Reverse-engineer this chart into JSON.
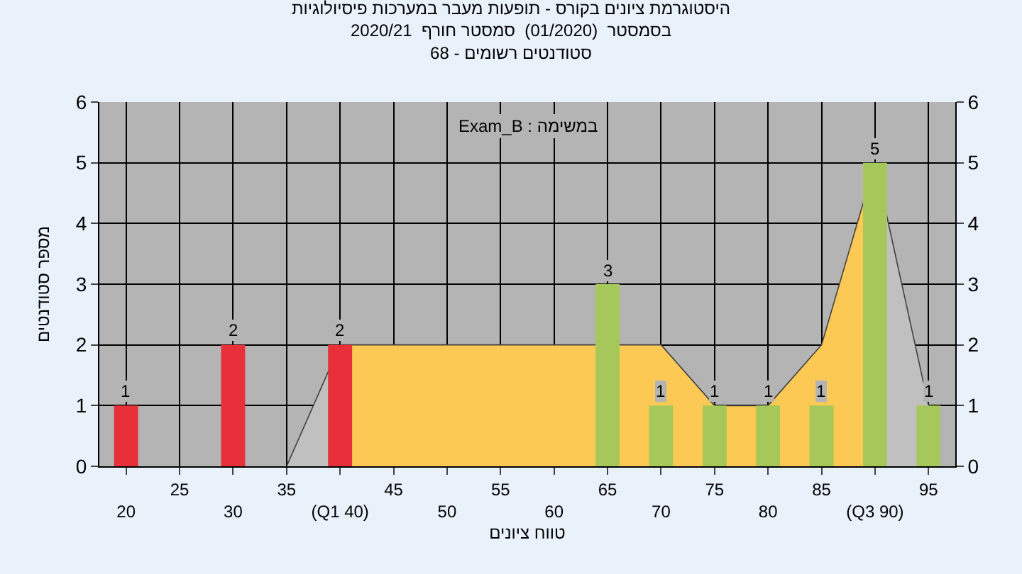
{
  "chart_data": {
    "type": "bar",
    "title": "היסטוגרמת ציונים בקורס - תופעות מעבר במערכות פיסיולוגיות\nבסמסטר  (01/2020)  סמסטר חורף  2020/21\nסטודנטים רשומים - 68",
    "xlabel": "טווח ציונים",
    "ylabel": "מספר סטודנטים",
    "annotations": [
      "Exam_B : במשימה"
    ],
    "categories": [
      "20",
      "25",
      "30",
      "35",
      "(Q1 40)",
      "45",
      "50",
      "55",
      "60",
      "65",
      "70",
      "75",
      "80",
      "85",
      "(Q3 90)",
      "95"
    ],
    "series": [
      {
        "type": "area",
        "color": "#c0c0c0",
        "values": [
          null,
          null,
          null,
          0,
          2,
          null,
          null,
          null,
          null,
          null,
          null,
          null,
          null,
          null,
          5,
          1
        ]
      },
      {
        "type": "area",
        "color": "#fcc955",
        "values": [
          null,
          null,
          null,
          null,
          2,
          2,
          2,
          2,
          2,
          2,
          2,
          1,
          1,
          2,
          5,
          null
        ]
      },
      {
        "values": [
          1,
          null,
          2,
          null,
          2,
          null,
          null,
          null,
          null,
          3,
          1,
          1,
          1,
          1,
          5,
          1
        ],
        "value_labels": [
          "1",
          null,
          "2",
          null,
          "2",
          null,
          null,
          null,
          null,
          "3",
          "1",
          "1",
          "1",
          "1",
          "5",
          "1"
        ],
        "colors": [
          "#e8303a",
          "#e8303a",
          "#e8303a",
          "#e8303a",
          "#e8303a",
          "#a6c85a",
          "#a6c85a",
          "#a6c85a",
          "#a6c85a",
          "#a6c85a",
          "#a6c85a",
          "#a6c85a",
          "#a6c85a",
          "#a6c85a",
          "#a6c85a",
          "#a6c85a"
        ]
      }
    ],
    "ylim": [
      0,
      6
    ],
    "yticks": [
      0,
      1,
      2,
      3,
      4,
      5,
      6
    ],
    "y2lim": [
      0,
      6
    ],
    "y2ticks": [
      0,
      1,
      2,
      3,
      4,
      5,
      6
    ],
    "grid": true
  }
}
